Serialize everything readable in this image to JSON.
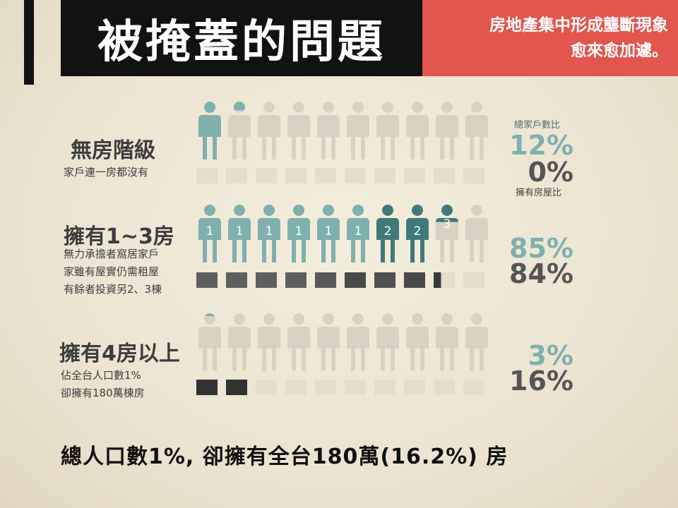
{
  "header": {
    "title": "被掩蓋的問題",
    "subtitle_line1": "房地產集中形成壟斷現象",
    "subtitle_line2": "愈來愈加遽。"
  },
  "colors": {
    "teal": "#7fb0ae",
    "dark_teal": "#3f7a78",
    "faded_person": "#d9d2c3",
    "house_light": "#e5ddcc",
    "house_dark": "#3a3a3a",
    "accent_red": "#e2564d"
  },
  "groups": [
    {
      "title": "無房階級",
      "desc": [
        "家戶連一房都沒有"
      ],
      "household_pct": "12%",
      "house_pct": "0%",
      "label_top": "總家戶數比",
      "label_bottom": "擁有房屋比",
      "people": [
        {
          "fill": 1,
          "num": ""
        },
        {
          "fill": 0.15,
          "num": ""
        },
        {
          "fill": 0,
          "num": ""
        },
        {
          "fill": 0,
          "num": ""
        },
        {
          "fill": 0,
          "num": ""
        },
        {
          "fill": 0,
          "num": ""
        },
        {
          "fill": 0,
          "num": ""
        },
        {
          "fill": 0,
          "num": ""
        },
        {
          "fill": 0,
          "num": ""
        },
        {
          "fill": 0,
          "num": ""
        }
      ],
      "houses": [
        0,
        0,
        0,
        0,
        0,
        0,
        0,
        0,
        0,
        0
      ]
    },
    {
      "title": "擁有1~3房",
      "desc": [
        "無力承擔者窩居家戶",
        "家雖有屋實仍需租屋",
        "有餘者投資另2、3棟"
      ],
      "household_pct": "85%",
      "house_pct": "84%",
      "people": [
        {
          "fill": 1,
          "num": "1"
        },
        {
          "fill": 1,
          "num": "1"
        },
        {
          "fill": 1,
          "num": "1"
        },
        {
          "fill": 1,
          "num": "1"
        },
        {
          "fill": 1,
          "num": "1"
        },
        {
          "fill": 1,
          "num": "1"
        },
        {
          "fill": 1,
          "num": "2"
        },
        {
          "fill": 1,
          "num": "2"
        },
        {
          "fill": 0.3,
          "num": "3"
        },
        {
          "fill": 0,
          "num": ""
        }
      ],
      "houses": [
        0.7,
        0.7,
        0.7,
        0.7,
        0.75,
        0.85,
        0.8,
        0.85,
        0.3,
        0
      ]
    },
    {
      "title": "擁有4房以上",
      "desc": [
        "佔全台人口數1%",
        "卻擁有180萬棟房"
      ],
      "household_pct": "3%",
      "house_pct": "16%",
      "people": [
        {
          "fill": 0.05,
          "num": ""
        },
        {
          "fill": 0,
          "num": ""
        },
        {
          "fill": 0,
          "num": ""
        },
        {
          "fill": 0,
          "num": ""
        },
        {
          "fill": 0,
          "num": ""
        },
        {
          "fill": 0,
          "num": ""
        },
        {
          "fill": 0,
          "num": ""
        },
        {
          "fill": 0,
          "num": ""
        },
        {
          "fill": 0,
          "num": ""
        },
        {
          "fill": 0,
          "num": ""
        }
      ],
      "houses": [
        1,
        1,
        0,
        0,
        0,
        0,
        0,
        0,
        0,
        0
      ]
    }
  ],
  "footer": "總人口數1%, 卻擁有全台180萬(16.2%) 房"
}
